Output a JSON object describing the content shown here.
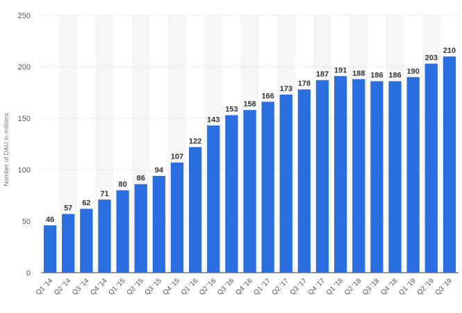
{
  "chart_data": {
    "type": "bar",
    "title": "",
    "xlabel": "",
    "ylabel": "Number of DAU in millions",
    "ylim": [
      0,
      250
    ],
    "yticks": [
      0,
      50,
      100,
      150,
      200,
      250
    ],
    "grid": true,
    "legend": "none",
    "bar_color": "#2a6ee0",
    "categories": [
      "Q1 '14",
      "Q2 '14",
      "Q3 '14",
      "Q4 '14",
      "Q1 '15",
      "Q2 '15",
      "Q3 '15",
      "Q4 '15",
      "Q1 '16",
      "Q2 '16",
      "Q3 '16",
      "Q4 '16",
      "Q1 '17",
      "Q2 '17",
      "Q3 '17",
      "Q4 '17",
      "Q1 '18",
      "Q2 '18",
      "Q3 '18",
      "Q4 '18",
      "Q1 '19",
      "Q2 '19",
      "Q3 '19"
    ],
    "values": [
      46,
      57,
      62,
      71,
      80,
      86,
      94,
      107,
      122,
      143,
      153,
      158,
      166,
      173,
      178,
      187,
      191,
      188,
      186,
      186,
      190,
      203,
      210
    ]
  }
}
